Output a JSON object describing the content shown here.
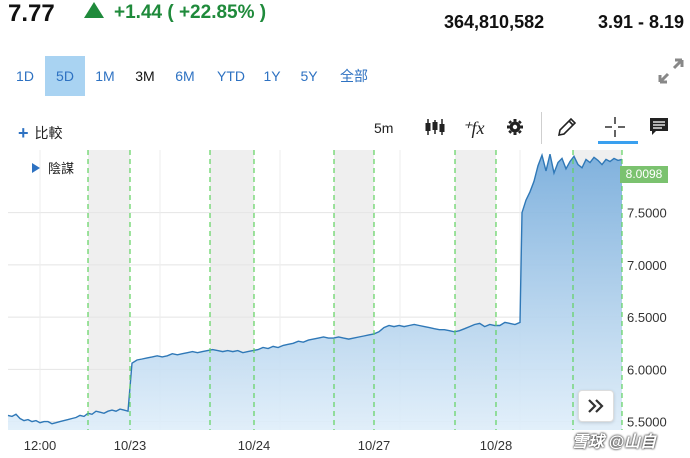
{
  "header": {
    "price": "7.77",
    "change": "+1.44 ( +22.85% )",
    "volume": "364,810,582",
    "range": "3.91 - 8.19",
    "up_color": "#1f8a3b"
  },
  "range_tabs": [
    "1D",
    "5D",
    "1M",
    "3M",
    "6M",
    "YTD",
    "1Y",
    "5Y",
    "全部"
  ],
  "active_tab": "5D",
  "toolbar": {
    "compare_label": "比較",
    "interval_label": "5m",
    "icons": [
      "candlestick-icon",
      "function-icon",
      "gear-icon",
      "pencil-icon",
      "crosshair-icon",
      "comment-icon"
    ]
  },
  "legend": {
    "label": "陰謀"
  },
  "chart_data": {
    "type": "area",
    "x_tick_labels": [
      "12:00",
      "10/23",
      "10/24",
      "10/27",
      "10/28"
    ],
    "y_tick_labels": [
      "5.5000",
      "6.0000",
      "6.5000",
      "7.0000",
      "7.5000"
    ],
    "ylim": [
      5.42,
      8.1
    ],
    "last_price_label": "8.0098",
    "line_color": "#2f78b7",
    "series": [
      {
        "values": [
          5.56,
          5.55,
          5.57,
          5.53,
          5.51,
          5.52,
          5.5,
          5.51,
          5.49,
          5.5,
          5.5,
          5.48,
          5.49,
          5.5,
          5.51,
          5.52,
          5.53,
          5.54,
          5.56,
          5.55,
          5.58,
          5.57,
          5.6,
          5.59,
          5.58,
          5.6,
          5.61,
          5.6,
          5.62,
          5.61,
          5.6,
          6.06,
          6.09,
          6.1,
          6.11,
          6.12,
          6.13,
          6.12,
          6.13,
          6.15,
          6.14,
          6.15,
          6.16,
          6.17,
          6.16,
          6.17,
          6.18,
          6.19,
          6.18,
          6.17,
          6.18,
          6.17,
          6.18,
          6.16,
          6.17,
          6.18,
          6.19,
          6.21,
          6.2,
          6.22,
          6.21,
          6.23,
          6.24,
          6.25,
          6.27,
          6.26,
          6.28,
          6.29,
          6.3,
          6.31,
          6.3,
          6.3,
          6.31,
          6.3,
          6.29,
          6.3,
          6.31,
          6.32,
          6.33,
          6.34,
          6.36,
          6.4,
          6.42,
          6.41,
          6.42,
          6.41,
          6.42,
          6.43,
          6.42,
          6.41,
          6.4,
          6.39,
          6.38,
          6.38,
          6.37,
          6.36,
          6.37,
          6.39,
          6.41,
          6.43,
          6.44,
          6.41,
          6.43,
          6.42,
          6.42,
          6.45,
          6.44,
          6.43,
          6.45,
          7.5,
          7.62,
          7.7,
          7.8,
          7.95,
          8.05,
          7.9,
          8.06,
          7.88,
          7.98,
          8.02,
          7.92,
          7.99,
          8.04,
          7.96,
          7.93,
          8.01,
          7.98,
          8.03,
          8.0,
          7.96,
          8.01,
          7.99,
          8.02,
          8.0,
          8.01
        ]
      }
    ],
    "shaded_day_bands": 5,
    "grid": true
  },
  "watermark": "雪球 @山自"
}
